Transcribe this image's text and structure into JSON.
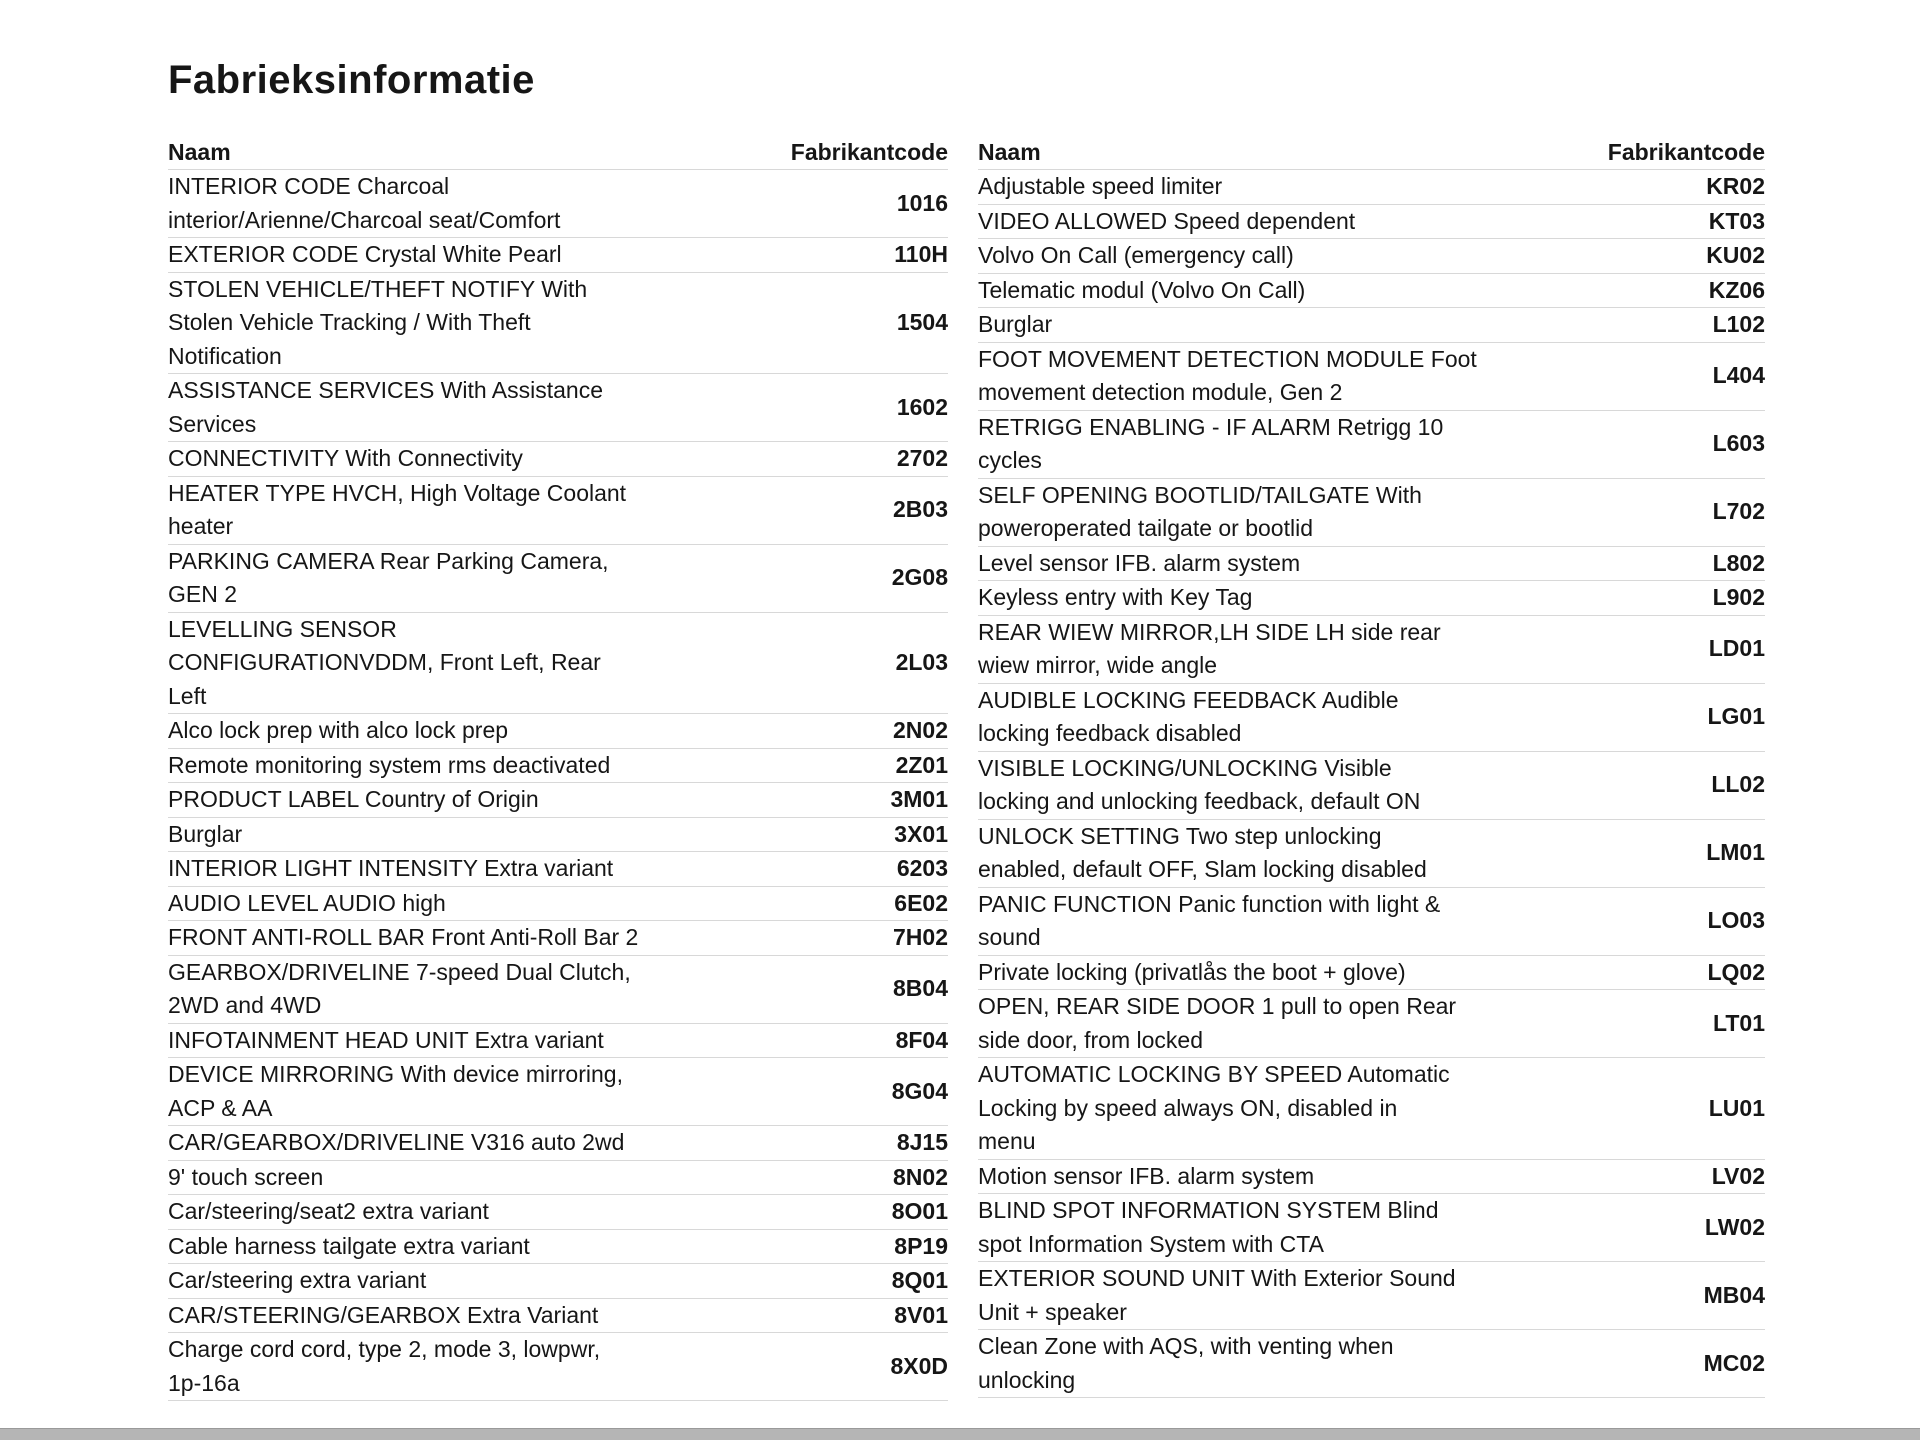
{
  "page": {
    "title": "Fabrieksinformatie"
  },
  "colors": {
    "text": "#161616",
    "separator": "#d8d8d8",
    "bottom_bar": "#b5b5b5",
    "background": "#ffffff"
  },
  "tables": {
    "left": {
      "name_header": "Naam",
      "code_header": "Fabrikantcode",
      "rows": [
        {
          "name": "INTERIOR CODE Charcoal\ninterior/Arienne/Charcoal seat/Comfort",
          "code": "1016"
        },
        {
          "name": "EXTERIOR CODE Crystal White Pearl",
          "code": "110H"
        },
        {
          "name": "STOLEN VEHICLE/THEFT NOTIFY With\nStolen Vehicle Tracking / With Theft\nNotification",
          "code": "1504"
        },
        {
          "name": "ASSISTANCE SERVICES With Assistance\nServices",
          "code": "1602"
        },
        {
          "name": "CONNECTIVITY With Connectivity",
          "code": "2702"
        },
        {
          "name": "HEATER TYPE HVCH, High Voltage Coolant\nheater",
          "code": "2B03"
        },
        {
          "name": "PARKING CAMERA Rear Parking Camera,\nGEN 2",
          "code": "2G08"
        },
        {
          "name": "LEVELLING SENSOR\nCONFIGURATIONVDDM, Front Left, Rear\nLeft",
          "code": "2L03"
        },
        {
          "name": "Alco lock prep with alco lock prep",
          "code": "2N02"
        },
        {
          "name": "Remote monitoring system rms deactivated",
          "code": "2Z01"
        },
        {
          "name": "PRODUCT LABEL Country of Origin",
          "code": "3M01"
        },
        {
          "name": "Burglar",
          "code": "3X01"
        },
        {
          "name": "INTERIOR LIGHT INTENSITY Extra variant",
          "code": "6203"
        },
        {
          "name": "AUDIO LEVEL AUDIO high",
          "code": "6E02"
        },
        {
          "name": "FRONT ANTI-ROLL BAR Front Anti-Roll Bar 2",
          "code": "7H02"
        },
        {
          "name": "GEARBOX/DRIVELINE 7-speed Dual Clutch,\n2WD and 4WD",
          "code": "8B04"
        },
        {
          "name": "INFOTAINMENT HEAD UNIT Extra variant",
          "code": "8F04"
        },
        {
          "name": "DEVICE MIRRORING With device mirroring,\nACP & AA",
          "code": "8G04"
        },
        {
          "name": "CAR/GEARBOX/DRIVELINE V316 auto 2wd",
          "code": "8J15"
        },
        {
          "name": "9' touch screen",
          "code": "8N02"
        },
        {
          "name": "Car/steering/seat2 extra variant",
          "code": "8O01"
        },
        {
          "name": "Cable harness tailgate extra variant",
          "code": "8P19"
        },
        {
          "name": "Car/steering extra variant",
          "code": "8Q01"
        },
        {
          "name": "CAR/STEERING/GEARBOX Extra Variant",
          "code": "8V01"
        },
        {
          "name": "Charge cord cord, type 2, mode 3, lowpwr,\n1p-16a",
          "code": "8X0D"
        }
      ]
    },
    "right": {
      "name_header": "Naam",
      "code_header": "Fabrikantcode",
      "rows": [
        {
          "name": "Adjustable speed limiter",
          "code": "KR02"
        },
        {
          "name": "VIDEO ALLOWED Speed dependent",
          "code": "KT03"
        },
        {
          "name": "Volvo On Call (emergency call)",
          "code": "KU02"
        },
        {
          "name": "Telematic modul (Volvo On Call)",
          "code": "KZ06"
        },
        {
          "name": "Burglar",
          "code": "L102"
        },
        {
          "name": "FOOT MOVEMENT DETECTION MODULE Foot\nmovement detection module, Gen 2",
          "code": "L404"
        },
        {
          "name": "RETRIGG ENABLING - IF ALARM Retrigg 10\ncycles",
          "code": "L603"
        },
        {
          "name": "SELF OPENING BOOTLID/TAILGATE With\npoweroperated tailgate or bootlid",
          "code": "L702"
        },
        {
          "name": "Level sensor IFB. alarm system",
          "code": "L802"
        },
        {
          "name": "Keyless entry with Key Tag",
          "code": "L902"
        },
        {
          "name": "REAR WIEW MIRROR,LH SIDE LH side rear\nwiew mirror, wide angle",
          "code": "LD01"
        },
        {
          "name": "AUDIBLE LOCKING FEEDBACK Audible\nlocking feedback disabled",
          "code": "LG01"
        },
        {
          "name": "VISIBLE LOCKING/UNLOCKING Visible\nlocking and unlocking feedback, default ON",
          "code": "LL02"
        },
        {
          "name": "UNLOCK SETTING Two step unlocking\nenabled, default OFF, Slam locking disabled",
          "code": "LM01"
        },
        {
          "name": "PANIC FUNCTION Panic function with light &\nsound",
          "code": "LO03"
        },
        {
          "name": "Private locking (privatlås the boot + glove)",
          "code": "LQ02"
        },
        {
          "name": "OPEN, REAR SIDE DOOR 1 pull to open Rear\nside door, from locked",
          "code": "LT01"
        },
        {
          "name": "AUTOMATIC LOCKING BY SPEED Automatic\nLocking by speed always ON, disabled in\nmenu",
          "code": "LU01"
        },
        {
          "name": "Motion sensor IFB. alarm system",
          "code": "LV02"
        },
        {
          "name": "BLIND SPOT INFORMATION SYSTEM Blind\nspot Information System with CTA",
          "code": "LW02"
        },
        {
          "name": "EXTERIOR SOUND UNIT With Exterior Sound\nUnit + speaker",
          "code": "MB04"
        },
        {
          "name": "Clean Zone with AQS, with venting when\nunlocking",
          "code": "MC02"
        }
      ]
    }
  }
}
